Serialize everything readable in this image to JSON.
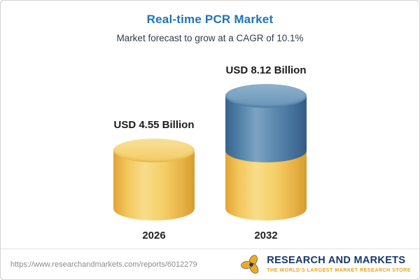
{
  "header": {
    "title": "Real-time PCR Market",
    "subtitle": "Market forecast to grow at a CAGR of 10.1%"
  },
  "chart_data": {
    "type": "bar",
    "style": "cylinder-3d",
    "title": "Real-time PCR Market",
    "subtitle": "Market forecast to grow at a CAGR of 10.1%",
    "cagr_percent": 10.1,
    "unit": "USD Billion",
    "categories": [
      "2026",
      "2032"
    ],
    "values": [
      4.55,
      8.12
    ],
    "value_labels": [
      "USD 4.55 Billion",
      "USD 8.12 Billion"
    ],
    "ylim": [
      0,
      8.12
    ],
    "legend": "off",
    "grid": "off",
    "colors": {
      "base_segment": "#F3C95C",
      "growth_segment": "#5585AE",
      "title_text": "#1E73B8"
    }
  },
  "footer": {
    "url": "https://www.researchandmarkets.com/reports/6012279",
    "logo_text": "RESEARCH AND MARKETS",
    "logo_tagline": "THE WORLD'S LARGEST MARKET RESEARCH STORE"
  }
}
